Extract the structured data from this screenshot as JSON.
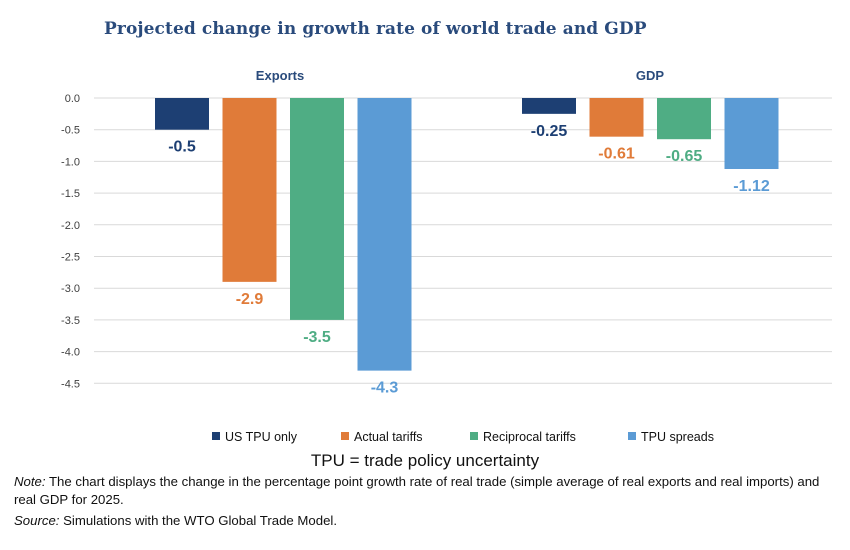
{
  "chart_data": {
    "type": "bar",
    "title": "Projected change in growth rate of world trade and GDP",
    "groups": [
      "Exports",
      "GDP"
    ],
    "series": [
      {
        "name": "US TPU only",
        "color": "#1d3f73",
        "values": [
          -0.5,
          -0.25
        ],
        "labels": [
          "-0.5",
          "-0.25"
        ]
      },
      {
        "name": "Actual tariffs",
        "color": "#e07b39",
        "values": [
          -2.9,
          -0.61
        ],
        "labels": [
          "-2.9",
          "-0.61"
        ]
      },
      {
        "name": "Reciprocal tariffs",
        "color": "#4fad84",
        "values": [
          -3.5,
          -0.65
        ],
        "labels": [
          "-3.5",
          "-0.65"
        ]
      },
      {
        "name": "TPU spreads",
        "color": "#5b9bd5",
        "values": [
          -4.3,
          -1.12
        ],
        "labels": [
          "-4.3",
          "-1.12"
        ]
      }
    ],
    "y_ticks": [
      "0.0",
      "-0.5",
      "-1.0",
      "-1.5",
      "-2.0",
      "-2.5",
      "-3.0",
      "-3.5",
      "-4.0",
      "-4.5"
    ],
    "ylim": [
      -4.5,
      0
    ],
    "grid": true,
    "legend_position": "bottom"
  },
  "tpu_definition": "TPU = trade policy uncertainty",
  "note": {
    "label": "Note:",
    "text": " The chart displays the change in the percentage point growth rate of real trade (simple average of real exports and real imports) and real GDP for 2025."
  },
  "source": {
    "label": "Source:",
    "text": " Simulations with the WTO Global Trade Model."
  }
}
